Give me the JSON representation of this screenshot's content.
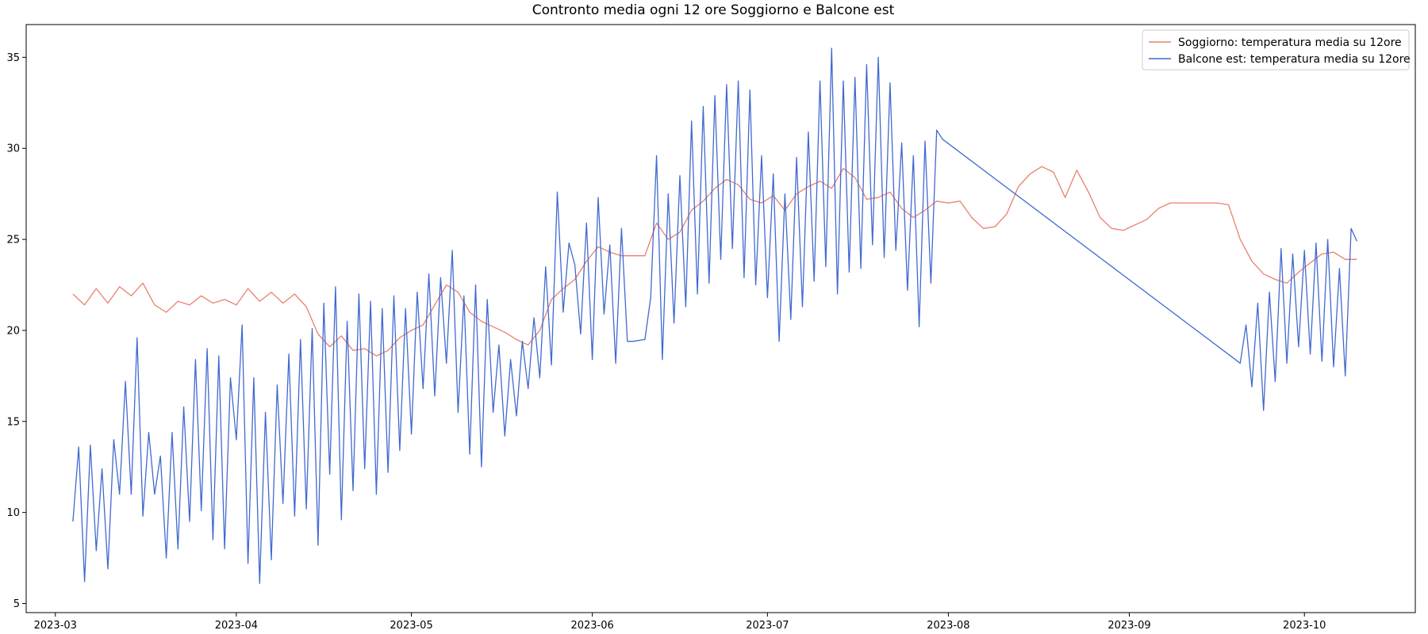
{
  "chart_data": {
    "type": "line",
    "title": "Contronto media ogni 12 ore Soggiorno e Balcone est",
    "xlabel": "",
    "ylabel": "",
    "x_type": "date",
    "xlim": [
      "2023-02-24",
      "2023-10-20"
    ],
    "ylim": [
      4.5,
      36.8
    ],
    "x_ticks": [
      "2023-03-01",
      "2023-04-01",
      "2023-05-01",
      "2023-06-01",
      "2023-07-01",
      "2023-08-01",
      "2023-09-01",
      "2023-10-01"
    ],
    "x_tick_labels": [
      "2023-03",
      "2023-04",
      "2023-05",
      "2023-06",
      "2023-07",
      "2023-08",
      "2023-09",
      "2023-10"
    ],
    "y_ticks": [
      5,
      10,
      15,
      20,
      25,
      30,
      35
    ],
    "grid": false,
    "legend_position": "top-right",
    "series": [
      {
        "name": "Soggiorno: temperatura media su 12ore",
        "color": "#e9806e",
        "x": [
          "2023-03-04",
          "2023-03-06",
          "2023-03-08",
          "2023-03-10",
          "2023-03-12",
          "2023-03-14",
          "2023-03-16",
          "2023-03-18",
          "2023-03-20",
          "2023-03-22",
          "2023-03-24",
          "2023-03-26",
          "2023-03-28",
          "2023-03-30",
          "2023-04-01",
          "2023-04-03",
          "2023-04-05",
          "2023-04-07",
          "2023-04-09",
          "2023-04-11",
          "2023-04-13",
          "2023-04-15",
          "2023-04-17",
          "2023-04-19",
          "2023-04-21",
          "2023-04-23",
          "2023-04-25",
          "2023-04-27",
          "2023-04-29",
          "2023-05-01",
          "2023-05-03",
          "2023-05-05",
          "2023-05-07",
          "2023-05-09",
          "2023-05-11",
          "2023-05-13",
          "2023-05-15",
          "2023-05-17",
          "2023-05-19",
          "2023-05-21",
          "2023-05-23",
          "2023-05-25",
          "2023-05-27",
          "2023-05-29",
          "2023-05-31",
          "2023-06-02",
          "2023-06-04",
          "2023-06-06",
          "2023-06-08",
          "2023-06-10",
          "2023-06-12",
          "2023-06-14",
          "2023-06-16",
          "2023-06-18",
          "2023-06-20",
          "2023-06-22",
          "2023-06-24",
          "2023-06-26",
          "2023-06-28",
          "2023-06-30",
          "2023-07-02",
          "2023-07-04",
          "2023-07-06",
          "2023-07-08",
          "2023-07-10",
          "2023-07-12",
          "2023-07-14",
          "2023-07-16",
          "2023-07-18",
          "2023-07-20",
          "2023-07-22",
          "2023-07-24",
          "2023-07-26",
          "2023-07-28",
          "2023-07-30",
          "2023-08-01",
          "2023-08-03",
          "2023-08-05",
          "2023-08-07",
          "2023-08-09",
          "2023-08-11",
          "2023-08-13",
          "2023-08-15",
          "2023-08-17",
          "2023-08-19",
          "2023-08-21",
          "2023-08-23",
          "2023-08-25",
          "2023-08-27",
          "2023-08-29",
          "2023-08-31",
          "2023-09-02",
          "2023-09-04",
          "2023-09-06",
          "2023-09-08",
          "2023-09-10",
          "2023-09-12",
          "2023-09-14",
          "2023-09-16",
          "2023-09-18",
          "2023-09-20",
          "2023-09-22",
          "2023-09-24",
          "2023-09-26",
          "2023-09-28",
          "2023-09-30",
          "2023-10-02",
          "2023-10-04",
          "2023-10-06",
          "2023-10-08",
          "2023-10-10"
        ],
        "y": [
          22.0,
          21.4,
          22.3,
          21.5,
          22.4,
          21.9,
          22.6,
          21.4,
          21.0,
          21.6,
          21.4,
          21.9,
          21.5,
          21.7,
          21.4,
          22.3,
          21.6,
          22.1,
          21.5,
          22.0,
          21.3,
          19.8,
          19.1,
          19.7,
          18.9,
          19.0,
          18.6,
          18.9,
          19.6,
          20.0,
          20.3,
          21.4,
          22.5,
          22.1,
          21.0,
          20.5,
          20.2,
          19.9,
          19.5,
          19.2,
          20.0,
          21.7,
          22.3,
          22.8,
          23.8,
          24.6,
          24.3,
          24.1,
          24.1,
          24.1,
          25.9,
          25.0,
          25.4,
          26.6,
          27.1,
          27.8,
          28.3,
          28.0,
          27.2,
          27.0,
          27.4,
          26.6,
          27.5,
          27.9,
          28.2,
          27.8,
          28.9,
          28.4,
          27.2,
          27.3,
          27.6,
          26.7,
          26.2,
          26.6,
          27.1,
          27.0,
          27.1,
          26.2,
          25.6,
          25.7,
          26.4,
          27.9,
          28.6,
          29.0,
          28.7,
          27.3,
          28.8,
          27.6,
          26.2,
          25.6,
          25.5,
          25.8,
          26.1,
          26.7,
          27.0,
          27.0,
          27.0,
          27.0,
          27.0,
          26.9,
          25.0,
          23.8,
          23.1,
          22.8,
          22.6,
          23.2,
          23.7,
          24.2,
          24.3,
          23.9,
          23.9
        ]
      },
      {
        "name": "Balcone est: temperatura media su 12ore",
        "color": "#4169d0",
        "x": [
          "2023-03-04",
          "2023-03-05",
          "2023-03-06",
          "2023-03-07",
          "2023-03-08",
          "2023-03-09",
          "2023-03-10",
          "2023-03-11",
          "2023-03-12",
          "2023-03-13",
          "2023-03-14",
          "2023-03-15",
          "2023-03-16",
          "2023-03-17",
          "2023-03-18",
          "2023-03-19",
          "2023-03-20",
          "2023-03-21",
          "2023-03-22",
          "2023-03-23",
          "2023-03-24",
          "2023-03-25",
          "2023-03-26",
          "2023-03-27",
          "2023-03-28",
          "2023-03-29",
          "2023-03-30",
          "2023-03-31",
          "2023-04-01",
          "2023-04-02",
          "2023-04-03",
          "2023-04-04",
          "2023-04-05",
          "2023-04-06",
          "2023-04-07",
          "2023-04-08",
          "2023-04-09",
          "2023-04-10",
          "2023-04-11",
          "2023-04-12",
          "2023-04-13",
          "2023-04-14",
          "2023-04-15",
          "2023-04-16",
          "2023-04-17",
          "2023-04-18",
          "2023-04-19",
          "2023-04-20",
          "2023-04-21",
          "2023-04-22",
          "2023-04-23",
          "2023-04-24",
          "2023-04-25",
          "2023-04-26",
          "2023-04-27",
          "2023-04-28",
          "2023-04-29",
          "2023-04-30",
          "2023-05-01",
          "2023-05-02",
          "2023-05-03",
          "2023-05-04",
          "2023-05-05",
          "2023-05-06",
          "2023-05-07",
          "2023-05-08",
          "2023-05-09",
          "2023-05-10",
          "2023-05-11",
          "2023-05-12",
          "2023-05-13",
          "2023-05-14",
          "2023-05-15",
          "2023-05-16",
          "2023-05-17",
          "2023-05-18",
          "2023-05-19",
          "2023-05-20",
          "2023-05-21",
          "2023-05-22",
          "2023-05-23",
          "2023-05-24",
          "2023-05-25",
          "2023-05-26",
          "2023-05-27",
          "2023-05-28",
          "2023-05-29",
          "2023-05-30",
          "2023-05-31",
          "2023-06-01",
          "2023-06-02",
          "2023-06-03",
          "2023-06-04",
          "2023-06-05",
          "2023-06-06",
          "2023-06-07",
          "2023-06-08",
          "2023-06-10",
          "2023-06-11",
          "2023-06-12",
          "2023-06-13",
          "2023-06-14",
          "2023-06-15",
          "2023-06-16",
          "2023-06-17",
          "2023-06-18",
          "2023-06-19",
          "2023-06-20",
          "2023-06-21",
          "2023-06-22",
          "2023-06-23",
          "2023-06-24",
          "2023-06-25",
          "2023-06-26",
          "2023-06-27",
          "2023-06-28",
          "2023-06-29",
          "2023-06-30",
          "2023-07-01",
          "2023-07-02",
          "2023-07-03",
          "2023-07-04",
          "2023-07-05",
          "2023-07-06",
          "2023-07-07",
          "2023-07-08",
          "2023-07-09",
          "2023-07-10",
          "2023-07-11",
          "2023-07-12",
          "2023-07-13",
          "2023-07-14",
          "2023-07-15",
          "2023-07-16",
          "2023-07-17",
          "2023-07-18",
          "2023-07-19",
          "2023-07-20",
          "2023-07-21",
          "2023-07-22",
          "2023-07-23",
          "2023-07-24",
          "2023-07-25",
          "2023-07-26",
          "2023-07-27",
          "2023-07-28",
          "2023-07-29",
          "2023-07-30",
          "2023-07-31",
          "2023-09-20",
          "2023-09-21",
          "2023-09-22",
          "2023-09-23",
          "2023-09-24",
          "2023-09-25",
          "2023-09-26",
          "2023-09-27",
          "2023-09-28",
          "2023-09-29",
          "2023-09-30",
          "2023-10-01",
          "2023-10-02",
          "2023-10-03",
          "2023-10-04",
          "2023-10-05",
          "2023-10-06",
          "2023-10-07",
          "2023-10-08",
          "2023-10-09",
          "2023-10-10"
        ],
        "y": [
          9.5,
          13.6,
          6.2,
          13.7,
          7.9,
          12.4,
          6.9,
          14.0,
          11.0,
          17.2,
          11.0,
          19.6,
          9.8,
          14.4,
          11.0,
          13.1,
          7.5,
          14.4,
          8.0,
          15.8,
          9.5,
          18.4,
          10.1,
          19.0,
          8.5,
          18.6,
          8.0,
          17.4,
          14.0,
          20.3,
          7.2,
          17.4,
          6.1,
          15.5,
          7.4,
          17.0,
          10.5,
          18.7,
          9.8,
          19.5,
          10.2,
          20.1,
          8.2,
          21.5,
          12.1,
          22.4,
          9.6,
          20.5,
          11.2,
          22.0,
          12.4,
          21.6,
          11.0,
          21.2,
          12.2,
          21.9,
          13.4,
          21.2,
          14.3,
          22.1,
          16.8,
          23.1,
          16.4,
          22.9,
          18.2,
          24.4,
          15.5,
          21.9,
          13.2,
          22.5,
          12.5,
          21.7,
          15.5,
          19.2,
          14.2,
          18.4,
          15.3,
          19.4,
          16.8,
          20.7,
          17.4,
          23.5,
          18.1,
          27.6,
          21.0,
          24.8,
          23.6,
          19.8,
          25.9,
          18.4,
          27.3,
          20.9,
          24.7,
          18.2,
          25.6,
          19.4,
          19.4,
          19.5,
          21.8,
          29.6,
          18.4,
          27.5,
          20.4,
          28.5,
          21.3,
          31.5,
          22.0,
          32.3,
          22.6,
          32.9,
          23.9,
          33.5,
          24.5,
          33.7,
          22.9,
          33.2,
          22.5,
          29.6,
          21.8,
          28.6,
          19.4,
          27.5,
          20.6,
          29.5,
          21.3,
          30.9,
          22.7,
          33.7,
          23.5,
          35.5,
          22.0,
          33.7,
          23.2,
          33.9,
          23.4,
          34.6,
          24.7,
          35.0,
          24.0,
          33.6,
          24.4,
          30.3,
          22.2,
          29.6,
          20.2,
          30.4,
          22.6,
          31.0,
          30.5,
          18.2,
          20.3,
          16.9,
          21.5,
          15.6,
          22.1,
          17.2,
          24.5,
          18.2,
          24.2,
          19.1,
          24.4,
          18.7,
          24.8,
          18.3,
          25.0,
          18.0,
          23.4,
          17.5,
          25.6,
          24.9
        ]
      }
    ]
  }
}
